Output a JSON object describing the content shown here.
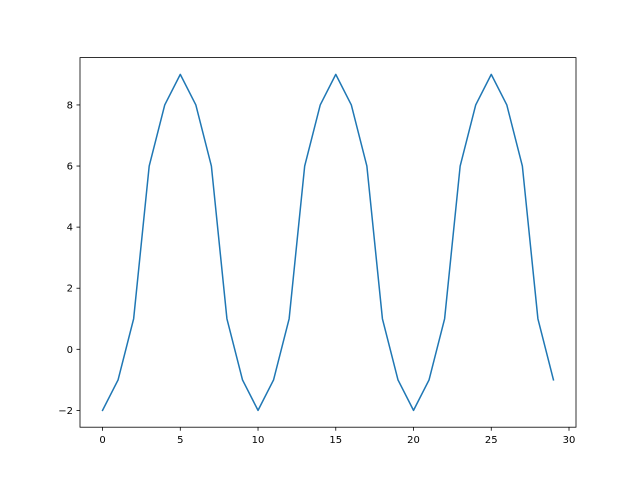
{
  "chart_data": {
    "type": "line",
    "title": "",
    "xlabel": "",
    "ylabel": "",
    "x": [
      0,
      1,
      2,
      3,
      4,
      5,
      6,
      7,
      8,
      9,
      10,
      11,
      12,
      13,
      14,
      15,
      16,
      17,
      18,
      19,
      20,
      21,
      22,
      23,
      24,
      25,
      26,
      27,
      28,
      29
    ],
    "series": [
      {
        "values": [
          -2,
          -1,
          1,
          6,
          8,
          9,
          8,
          6,
          1,
          -1,
          -2,
          -1,
          1,
          6,
          8,
          9,
          8,
          6,
          1,
          -1,
          -2,
          -1,
          1,
          6,
          8,
          9,
          8,
          6,
          1,
          -1
        ],
        "color": "#1f77b4"
      }
    ],
    "xlim": [
      -1.45,
      30.45
    ],
    "ylim": [
      -2.55,
      9.55
    ],
    "xticks": [
      0,
      5,
      10,
      15,
      20,
      25,
      30
    ],
    "xtick_labels": [
      "0",
      "5",
      "10",
      "15",
      "20",
      "25",
      "30"
    ],
    "yticks": [
      -2,
      0,
      2,
      4,
      6,
      8
    ],
    "ytick_labels": [
      "−2",
      "0",
      "2",
      "4",
      "6",
      "8"
    ],
    "grid": false,
    "legend": "none"
  }
}
